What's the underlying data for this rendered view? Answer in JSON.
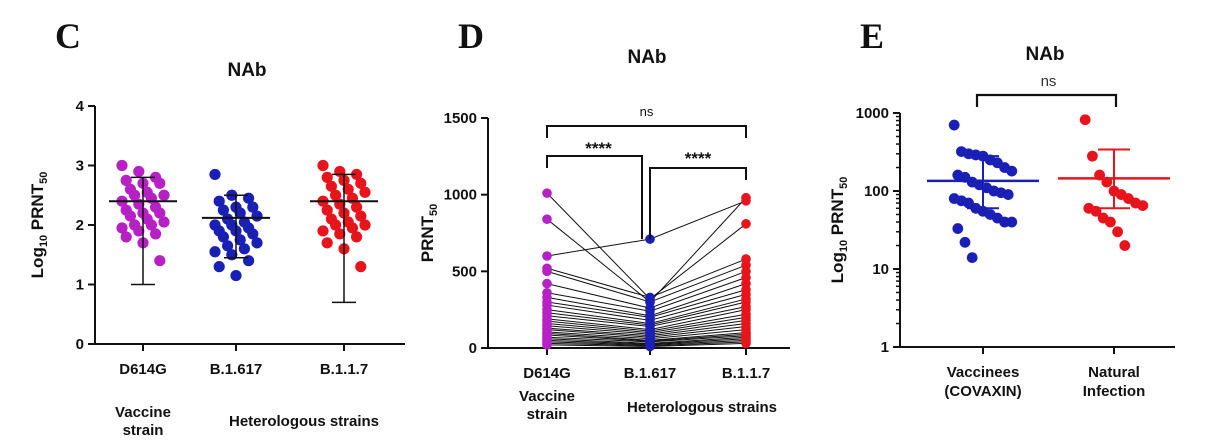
{
  "chart_data": [
    {
      "panel_label": "C",
      "type": "scatter",
      "title": "NAb",
      "ylabel": {
        "base": "Log",
        "sub1": "10",
        "mid": " PRNT",
        "sub2": "50"
      },
      "ylim": [
        0,
        4
      ],
      "yticks": [
        "0",
        "1",
        "2",
        "3",
        "4"
      ],
      "categories": [
        "D614G",
        "B.1.617",
        "B.1.1.7"
      ],
      "group_labels": [
        "Vaccine",
        "strain",
        "Heterologous strains"
      ],
      "series": [
        {
          "color": "#B620C4",
          "mean": 2.4,
          "sd_low": 1.0,
          "sd_high": 2.8,
          "values": [
            3.0,
            2.9,
            2.8,
            2.75,
            2.7,
            2.7,
            2.6,
            2.55,
            2.5,
            2.5,
            2.45,
            2.4,
            2.35,
            2.3,
            2.25,
            2.2,
            2.2,
            2.15,
            2.1,
            2.05,
            2.0,
            2.0,
            1.95,
            1.9,
            1.85,
            1.8,
            1.7,
            1.4
          ]
        },
        {
          "color": "#1A1FB5",
          "mean": 2.12,
          "sd_low": 1.45,
          "sd_high": 2.5,
          "values": [
            2.85,
            2.5,
            2.45,
            2.4,
            2.3,
            2.3,
            2.25,
            2.2,
            2.15,
            2.1,
            2.05,
            2.0,
            2.0,
            1.95,
            1.9,
            1.9,
            1.85,
            1.8,
            1.75,
            1.7,
            1.65,
            1.6,
            1.55,
            1.5,
            1.4,
            1.3,
            1.15
          ]
        },
        {
          "color": "#E8141C",
          "mean": 2.4,
          "sd_low": 0.7,
          "sd_high": 2.85,
          "values": [
            3.0,
            2.9,
            2.85,
            2.8,
            2.75,
            2.7,
            2.65,
            2.6,
            2.55,
            2.5,
            2.45,
            2.4,
            2.35,
            2.3,
            2.25,
            2.2,
            2.15,
            2.1,
            2.05,
            2.0,
            2.0,
            1.95,
            1.9,
            1.85,
            1.8,
            1.7,
            1.6,
            1.3
          ]
        }
      ]
    },
    {
      "panel_label": "D",
      "type": "line",
      "title": "NAb",
      "ylabel": {
        "base": "PRNT",
        "sub": "50"
      },
      "ylim": [
        0,
        1500
      ],
      "yticks": [
        "0",
        "500",
        "1000",
        "1500"
      ],
      "categories": [
        "D614G",
        "B.1.617",
        "B.1.1.7"
      ],
      "group_labels": [
        "Vaccine",
        "strain",
        "Heterologous strains"
      ],
      "series_colors": [
        "#B620C4",
        "#1A1FB5",
        "#E8141C"
      ],
      "pairs": [
        [
          1010,
          320,
          810
        ],
        [
          840,
          300,
          980
        ],
        [
          600,
          710,
          960
        ],
        [
          520,
          330,
          580
        ],
        [
          500,
          300,
          540
        ],
        [
          420,
          260,
          500
        ],
        [
          360,
          240,
          460
        ],
        [
          330,
          210,
          420
        ],
        [
          300,
          200,
          380
        ],
        [
          280,
          180,
          350
        ],
        [
          250,
          160,
          320
        ],
        [
          230,
          150,
          300
        ],
        [
          210,
          140,
          270
        ],
        [
          190,
          120,
          250
        ],
        [
          175,
          110,
          220
        ],
        [
          160,
          100,
          200
        ],
        [
          145,
          90,
          180
        ],
        [
          130,
          80,
          160
        ],
        [
          120,
          70,
          140
        ],
        [
          105,
          60,
          120
        ],
        [
          95,
          50,
          100
        ],
        [
          85,
          45,
          90
        ],
        [
          70,
          40,
          80
        ],
        [
          60,
          30,
          70
        ],
        [
          50,
          25,
          60
        ],
        [
          40,
          20,
          50
        ],
        [
          30,
          15,
          40
        ],
        [
          20,
          10,
          30
        ]
      ],
      "annotations": [
        {
          "text": "****",
          "from": 0,
          "to": 1
        },
        {
          "text": "****",
          "from": 1,
          "to": 2
        },
        {
          "text": "ns",
          "from": 0,
          "to": 2
        }
      ]
    },
    {
      "panel_label": "E",
      "type": "scatter",
      "title": "NAb",
      "ylabel": {
        "base": "Log",
        "sub1": "10",
        "mid": " PRNT",
        "sub2": "50"
      },
      "yscale": "log",
      "ylim": [
        1,
        1000
      ],
      "yticks": [
        "1",
        "10",
        "100",
        "1000"
      ],
      "categories": [
        [
          "Vaccinees",
          "(COVAXIN)"
        ],
        [
          "Natural",
          "Infection"
        ]
      ],
      "series": [
        {
          "color": "#1A1FB5",
          "mean": 135,
          "sd_low": 60,
          "sd_high": 280,
          "values": [
            700,
            320,
            300,
            290,
            280,
            250,
            230,
            200,
            180,
            160,
            150,
            130,
            120,
            110,
            100,
            95,
            90,
            80,
            75,
            70,
            60,
            55,
            50,
            45,
            40,
            40,
            33,
            22,
            14
          ]
        },
        {
          "color": "#E8141C",
          "mean": 145,
          "sd_low": 60,
          "sd_high": 340,
          "values": [
            820,
            280,
            160,
            130,
            100,
            90,
            80,
            70,
            65,
            60,
            55,
            45,
            40,
            30,
            20
          ]
        }
      ],
      "annotations": [
        {
          "text": "ns",
          "from": 0,
          "to": 1
        }
      ]
    }
  ]
}
